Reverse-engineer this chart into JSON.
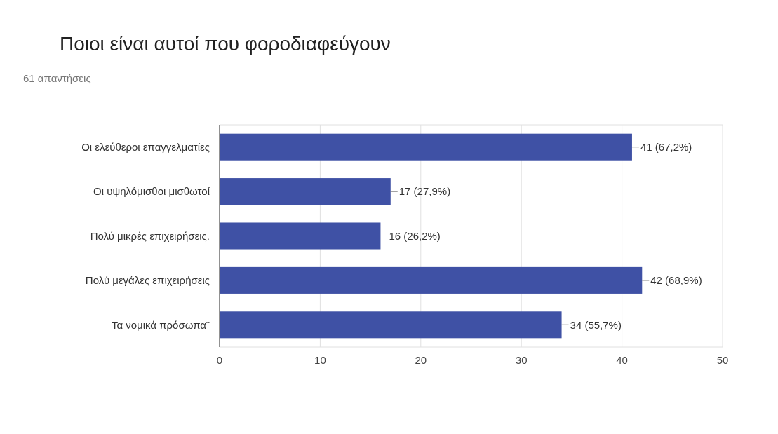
{
  "chart_data": {
    "type": "bar",
    "orientation": "horizontal",
    "title": "Ποιοι είναι αυτοί που φοροδιαφεύγουν",
    "subtitle": "61 απαντήσεις",
    "categories": [
      "Οι ελεύθεροι επαγγελματίες",
      "Οι υψηλόμισθοι μισθωτοί",
      "Πολύ μικρές επιχειρήσεις.",
      "Πολύ μεγάλες επιχειρήσεις",
      "Τα νομικά πρόσωπα¨"
    ],
    "values": [
      41,
      17,
      16,
      42,
      34
    ],
    "value_labels": [
      "41 (67,2%)",
      "17 (27,9%)",
      "16 (26,2%)",
      "42 (68,9%)",
      "34 (55,7%)"
    ],
    "color": "#3f51a5",
    "xlim": [
      0,
      50
    ],
    "xticks": [
      0,
      10,
      20,
      30,
      40,
      50
    ],
    "grid": "x"
  }
}
